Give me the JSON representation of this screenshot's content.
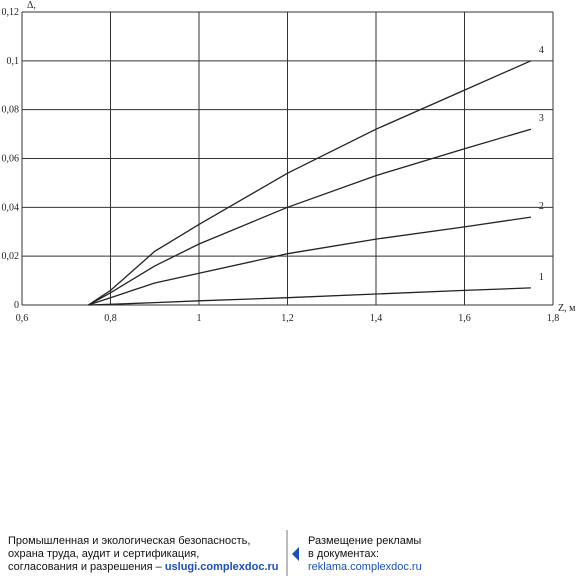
{
  "chart_data": {
    "type": "line",
    "y_label": "Δ,",
    "x_label": "Z, м",
    "x": [
      0.75,
      0.8,
      0.9,
      1.0,
      1.2,
      1.4,
      1.6,
      1.75
    ],
    "series": [
      {
        "name": "1",
        "color": "#222222",
        "values": [
          0,
          0.0003,
          0.001,
          0.0017,
          0.003,
          0.0045,
          0.006,
          0.007
        ]
      },
      {
        "name": "2",
        "color": "#222222",
        "values": [
          0,
          0.003,
          0.009,
          0.013,
          0.021,
          0.027,
          0.032,
          0.036
        ]
      },
      {
        "name": "3",
        "color": "#222222",
        "values": [
          0,
          0.005,
          0.016,
          0.025,
          0.04,
          0.053,
          0.064,
          0.072
        ]
      },
      {
        "name": "4",
        "color": "#222222",
        "values": [
          0,
          0.006,
          0.022,
          0.033,
          0.054,
          0.072,
          0.088,
          0.1
        ]
      }
    ],
    "xlim": [
      0.6,
      1.8
    ],
    "xticks": [
      {
        "value": 0.6,
        "label": "0,6"
      },
      {
        "value": 0.8,
        "label": "0,8"
      },
      1,
      {
        "value": 1.2,
        "label": "1,2"
      },
      {
        "value": 1.4,
        "label": "1,4"
      },
      {
        "value": 1.6,
        "label": "1,6"
      },
      {
        "value": 1.8,
        "label": "1,8"
      }
    ],
    "ylim": [
      0,
      0.12
    ],
    "yticks": [
      0,
      {
        "value": 0.02,
        "label": "0,02"
      },
      {
        "value": 0.04,
        "label": "0,04"
      },
      {
        "value": 0.06,
        "label": "0,06"
      },
      {
        "value": 0.08,
        "label": "0,08"
      },
      {
        "value": 0.1,
        "label": "0,1"
      },
      {
        "value": 0.12,
        "label": "0,12"
      }
    ],
    "grid": true
  },
  "footer": {
    "left": [
      "Промышленная и экологическая безопасность,",
      "охрана труда, аудит и сертификация,",
      "согласования и разрешения –"
    ],
    "left_link": "uslugi.complexdoc.ru",
    "right": [
      "Размещение рекламы",
      "в документах:"
    ],
    "right_link": "reklama.complexdoc.ru"
  }
}
